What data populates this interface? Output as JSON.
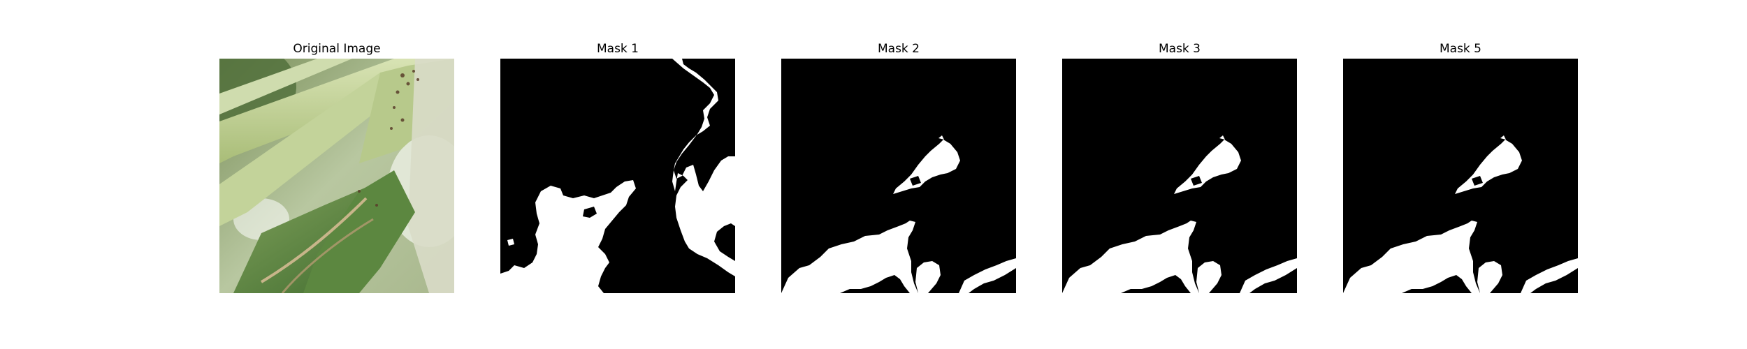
{
  "figure": {
    "panels": [
      {
        "title": "Original Image",
        "content": "leaf-photo"
      },
      {
        "title": "Mask 1",
        "content": "binary-mask"
      },
      {
        "title": "Mask 2",
        "content": "binary-mask"
      },
      {
        "title": "Mask 3",
        "content": "binary-mask"
      },
      {
        "title": "Mask 5",
        "content": "binary-mask"
      }
    ]
  },
  "colors": {
    "background": "#ffffff",
    "mask_background": "#000000",
    "mask_foreground": "#ffffff"
  }
}
